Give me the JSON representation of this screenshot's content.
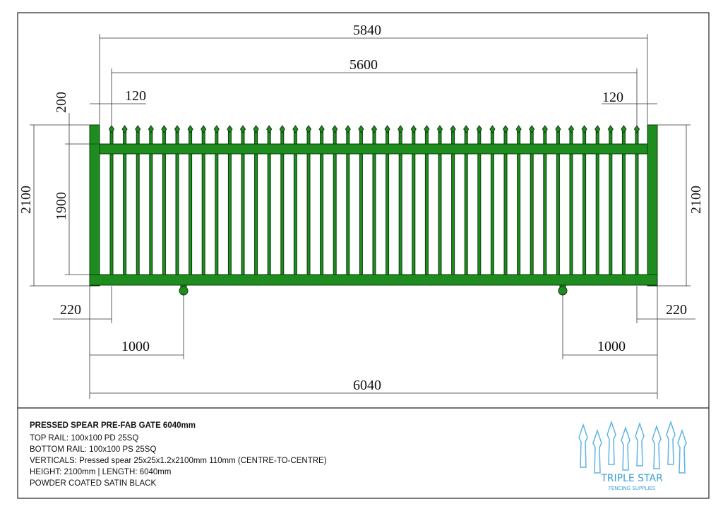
{
  "dimensions": {
    "overall_width": "5840",
    "picket_span": "5600",
    "left_offset": "120",
    "right_offset": "120",
    "spear_height": "200",
    "total_height_left": "2100",
    "rail_height": "1900",
    "total_height_right": "2100",
    "left_end": "220",
    "right_end": "220",
    "left_wheel": "1000",
    "right_wheel": "1000",
    "total_length": "6040"
  },
  "title_block": {
    "title": "PRESSED SPEAR PRE-FAB GATE 6040mm",
    "lines": [
      "TOP RAIL: 100x100 PD 25SQ",
      "BOTTOM RAIL: 100x100 PS 25SQ",
      "VERTICALS: Pressed spear 25x25x1.2x2100mm 110mm (CENTRE-TO-CENTRE)",
      "HEIGHT: 2100mm | LENGTH: 6040mm",
      "POWDER COATED SATIN BLACK"
    ]
  },
  "logo": {
    "name": "TRIPLE STAR",
    "tagline": "FENCING SUPPLIES"
  }
}
